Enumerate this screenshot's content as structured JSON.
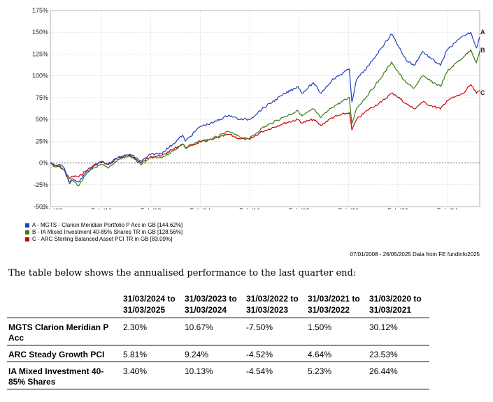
{
  "chart_data": {
    "type": "line",
    "ylim": [
      -50,
      175
    ],
    "yticks": [
      "175%",
      "150%",
      "125%",
      "100%",
      "75%",
      "50%",
      "25%",
      "0%",
      "-25%",
      "-50%"
    ],
    "ytick_values": [
      175,
      150,
      125,
      100,
      75,
      50,
      25,
      0,
      -25,
      -50
    ],
    "xrange": [
      "2008-01-07",
      "2025-05-26"
    ],
    "xticks": [
      "Feb '08",
      "Feb '10",
      "Feb '12",
      "Feb '14",
      "Feb '16",
      "Feb '18",
      "Feb '20",
      "Feb '22",
      "Feb '24"
    ],
    "xtick_dates": [
      "2008-02-01",
      "2010-02-01",
      "2012-02-01",
      "2014-02-01",
      "2016-02-01",
      "2018-02-01",
      "2020-02-01",
      "2022-02-01",
      "2024-02-01"
    ],
    "grid": true,
    "series": [
      {
        "name": "A - MGTS - Clarion Meridian Portfolio P Acc in GB [144.62%]",
        "end_label": "A",
        "color": "#1f3fbf",
        "points": [
          [
            "2008-01-07",
            0
          ],
          [
            "2008-03-15",
            -3
          ],
          [
            "2008-06-01",
            -2
          ],
          [
            "2008-08-01",
            -6
          ],
          [
            "2008-10-15",
            -22
          ],
          [
            "2008-12-01",
            -18
          ],
          [
            "2009-03-01",
            -22
          ],
          [
            "2009-06-01",
            -12
          ],
          [
            "2009-10-01",
            -4
          ],
          [
            "2010-02-01",
            2
          ],
          [
            "2010-05-15",
            -1
          ],
          [
            "2010-10-01",
            6
          ],
          [
            "2011-04-01",
            10
          ],
          [
            "2011-09-15",
            2
          ],
          [
            "2012-02-01",
            10
          ],
          [
            "2012-07-01",
            11
          ],
          [
            "2013-01-01",
            22
          ],
          [
            "2013-05-15",
            32
          ],
          [
            "2013-06-25",
            25
          ],
          [
            "2014-02-01",
            42
          ],
          [
            "2014-08-01",
            46
          ],
          [
            "2015-04-01",
            55
          ],
          [
            "2015-09-01",
            50
          ],
          [
            "2016-02-01",
            50
          ],
          [
            "2016-08-01",
            62
          ],
          [
            "2017-06-01",
            78
          ],
          [
            "2018-01-15",
            88
          ],
          [
            "2018-03-15",
            80
          ],
          [
            "2018-09-01",
            92
          ],
          [
            "2018-12-20",
            80
          ],
          [
            "2019-06-01",
            95
          ],
          [
            "2020-02-15",
            108
          ],
          [
            "2020-03-23",
            70
          ],
          [
            "2020-06-01",
            96
          ],
          [
            "2020-12-01",
            112
          ],
          [
            "2021-06-01",
            132
          ],
          [
            "2021-11-01",
            148
          ],
          [
            "2022-01-01",
            140
          ],
          [
            "2022-06-01",
            118
          ],
          [
            "2022-09-30",
            112
          ],
          [
            "2023-02-01",
            128
          ],
          [
            "2023-06-01",
            120
          ],
          [
            "2023-10-25",
            112
          ],
          [
            "2024-02-01",
            130
          ],
          [
            "2024-06-01",
            138
          ],
          [
            "2024-10-01",
            146
          ],
          [
            "2025-01-15",
            150
          ],
          [
            "2025-04-08",
            132
          ],
          [
            "2025-05-26",
            144.62
          ]
        ]
      },
      {
        "name": "B - IA Mixed Investment 40-85% Shares TR in GB [128.56%]",
        "end_label": "B",
        "color": "#3a7a1a",
        "points": [
          [
            "2008-01-07",
            0
          ],
          [
            "2008-03-15",
            -4
          ],
          [
            "2008-06-01",
            -3
          ],
          [
            "2008-08-01",
            -8
          ],
          [
            "2008-10-15",
            -24
          ],
          [
            "2008-12-01",
            -20
          ],
          [
            "2009-03-01",
            -26
          ],
          [
            "2009-06-01",
            -15
          ],
          [
            "2009-10-01",
            -6
          ],
          [
            "2010-02-01",
            -2
          ],
          [
            "2010-05-15",
            -6
          ],
          [
            "2010-10-01",
            4
          ],
          [
            "2011-04-01",
            8
          ],
          [
            "2011-09-15",
            -2
          ],
          [
            "2012-02-01",
            6
          ],
          [
            "2012-07-01",
            6
          ],
          [
            "2013-01-01",
            14
          ],
          [
            "2013-05-15",
            22
          ],
          [
            "2013-06-25",
            17
          ],
          [
            "2014-02-01",
            25
          ],
          [
            "2014-08-01",
            28
          ],
          [
            "2015-04-01",
            36
          ],
          [
            "2015-09-01",
            30
          ],
          [
            "2016-02-01",
            28
          ],
          [
            "2016-08-01",
            40
          ],
          [
            "2017-06-01",
            52
          ],
          [
            "2018-01-15",
            60
          ],
          [
            "2018-03-15",
            54
          ],
          [
            "2018-09-01",
            62
          ],
          [
            "2018-12-20",
            52
          ],
          [
            "2019-06-01",
            64
          ],
          [
            "2020-02-15",
            75
          ],
          [
            "2020-03-23",
            45
          ],
          [
            "2020-06-01",
            63
          ],
          [
            "2020-12-01",
            80
          ],
          [
            "2021-06-01",
            98
          ],
          [
            "2021-11-01",
            116
          ],
          [
            "2022-01-01",
            108
          ],
          [
            "2022-06-01",
            92
          ],
          [
            "2022-09-30",
            86
          ],
          [
            "2023-02-01",
            100
          ],
          [
            "2023-06-01",
            94
          ],
          [
            "2023-10-25",
            88
          ],
          [
            "2024-02-01",
            105
          ],
          [
            "2024-06-01",
            114
          ],
          [
            "2024-10-01",
            122
          ],
          [
            "2025-01-15",
            130
          ],
          [
            "2025-04-08",
            115
          ],
          [
            "2025-05-26",
            128.56
          ]
        ]
      },
      {
        "name": "C - ARC Sterling Balanced Asset PCI TR in GB [83.09%]",
        "end_label": "C",
        "color": "#cc0000",
        "points": [
          [
            "2008-01-07",
            0
          ],
          [
            "2008-03-15",
            -3
          ],
          [
            "2008-06-01",
            -5
          ],
          [
            "2008-08-01",
            -8
          ],
          [
            "2008-10-15",
            -18
          ],
          [
            "2008-12-01",
            -15
          ],
          [
            "2009-03-01",
            -16
          ],
          [
            "2009-06-01",
            -10
          ],
          [
            "2009-10-01",
            -3
          ],
          [
            "2010-02-01",
            1
          ],
          [
            "2010-05-15",
            -2
          ],
          [
            "2010-10-01",
            6
          ],
          [
            "2011-04-01",
            9
          ],
          [
            "2011-09-15",
            0
          ],
          [
            "2012-02-01",
            8
          ],
          [
            "2012-07-01",
            8
          ],
          [
            "2013-01-01",
            16
          ],
          [
            "2013-05-15",
            22
          ],
          [
            "2013-06-25",
            18
          ],
          [
            "2014-02-01",
            24
          ],
          [
            "2014-08-01",
            27
          ],
          [
            "2015-04-01",
            33
          ],
          [
            "2015-09-01",
            28
          ],
          [
            "2016-02-01",
            27
          ],
          [
            "2016-08-01",
            36
          ],
          [
            "2017-06-01",
            45
          ],
          [
            "2018-01-15",
            50
          ],
          [
            "2018-03-15",
            46
          ],
          [
            "2018-09-01",
            50
          ],
          [
            "2018-12-20",
            43
          ],
          [
            "2019-06-01",
            52
          ],
          [
            "2020-02-15",
            58
          ],
          [
            "2020-03-23",
            38
          ],
          [
            "2020-06-01",
            50
          ],
          [
            "2020-12-01",
            62
          ],
          [
            "2021-06-01",
            70
          ],
          [
            "2021-11-01",
            80
          ],
          [
            "2022-01-01",
            78
          ],
          [
            "2022-06-01",
            68
          ],
          [
            "2022-09-30",
            62
          ],
          [
            "2023-02-01",
            70
          ],
          [
            "2023-06-01",
            66
          ],
          [
            "2023-10-25",
            62
          ],
          [
            "2024-02-01",
            72
          ],
          [
            "2024-06-01",
            76
          ],
          [
            "2024-10-01",
            80
          ],
          [
            "2025-01-15",
            90
          ],
          [
            "2025-04-08",
            80
          ],
          [
            "2025-05-26",
            83.09
          ]
        ]
      }
    ]
  },
  "source_text": "07/01/2008 - 26/05/2025 Data from FE fundinfo2025",
  "intro_text": "The table below shows the annualised performance to the last quarter end:",
  "table": {
    "headers": [
      "",
      "31/03/2024 to 31/03/2025",
      "31/03/2023 to 31/03/2024",
      "31/03/2022 to 31/03/2023",
      "31/03/2021 to 31/03/2022",
      "31/03/2020 to 31/03/2021"
    ],
    "rows": [
      {
        "name": "MGTS Clarion Meridian P Acc",
        "values": [
          "2.30%",
          "10.67%",
          "-7.50%",
          "1.50%",
          "30.12%"
        ]
      },
      {
        "name": "ARC Steady Growth PCI",
        "values": [
          "5.81%",
          "9.24%",
          "-4.52%",
          "4.64%",
          "23.53%"
        ]
      },
      {
        "name": "IA Mixed Investment 40-85% Shares",
        "values": [
          "3.40%",
          "10.13%",
          "-4.54%",
          "5.23%",
          "26.44%"
        ]
      }
    ]
  }
}
